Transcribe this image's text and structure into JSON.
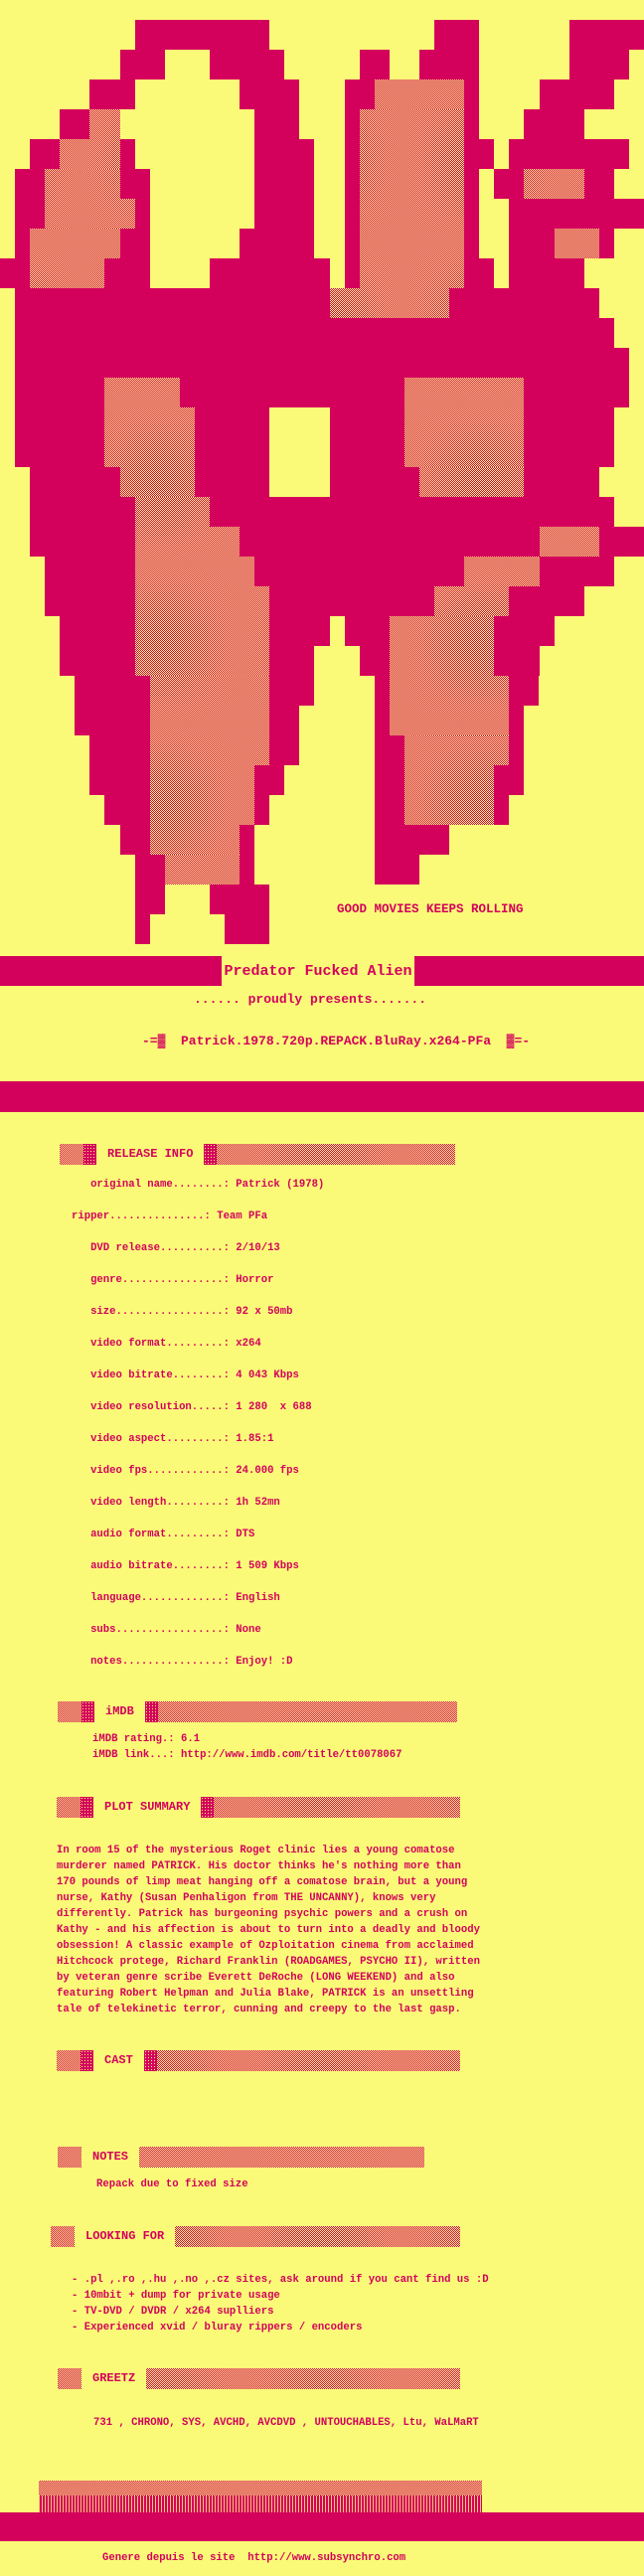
{
  "page": {
    "background_color": "#fafa78",
    "accent_color": "#d4015c"
  },
  "art": {
    "tagline": "GOOD MOVIES KEEPS ROLLING",
    "legend": {
      "#": "solid-crimson",
      "%": "dither",
      ".": "empty"
    },
    "grid": [
      ".........#########...........###......#####",
      "........###...#####.....##..####......####.",
      "......###.......####...##%%%%%%#....#####..",
      "....##%%.........###...#%%%%%%%#...####....",
      "..##%%%%#........####..#%%%%%%%##.########.",
      ".##%%%%%##.......####..#%%%%%%%#.##%%%%##..",
      ".##%%%%%%#.......####..#%%%%%%%#..#########",
      ".#%%%%%%##......#####..#%%%%%%%#..###%%%#..",
      "##%%%%%###....########.#%%%%%%%##.#####....",
      ".#####################%%%%%%%%##########...",
      ".########################################..",
      ".#########################################.",
      ".######%%%%%###############%%%%%%%%#######.",
      ".######%%%%%%#####....#####%%%%%%%%######..",
      ".######%%%%%%#####....#####%%%%%%%%######..",
      "..######%%%%%#####....######%%%%%%%#####...",
      "..#######%%%%%###########################..",
      "..#######%%%%%%%####################%%%%###",
      "...######%%%%%%%%##############%%%%%#####..",
      "...######%%%%%%%%%###########%%%%%#####....",
      "....#####%%%%%%%%%####.###%%%%%%%####......",
      "....#####%%%%%%%%%###...##%%%%%%%###.......",
      ".....#####%%%%%%%%###....#%%%%%%%%##.......",
      ".....#####%%%%%%%%##.....#%%%%%%%%#........",
      "......####%%%%%%%%##.....##%%%%%%%#........",
      "......####%%%%%%%##......##%%%%%%##........",
      ".......###%%%%%%%#.......##%%%%%%#.........",
      "........##%%%%%%#........#####.............",
      ".........##%%%%%#........###...............",
      ".........##...####.........................",
      ".........#.....###........................."
    ]
  },
  "banner": {
    "group_name": "Predator Fucked Alien",
    "presents_line": "...... proudly presents.......",
    "release_name": "-=▓  Patrick.1978.720p.REPACK.BluRay.x264-PFa  ▓=-"
  },
  "release_info": {
    "title": "RELEASE INFO",
    "lines": [
      "   original name........: Patrick (1978)",
      "ripper...............: Team PFa",
      "   DVD release..........: 2/10/13",
      "   genre................: Horror",
      "   size.................: 92 x 50mb",
      "   video format.........: x264",
      "   video bitrate........: 4 043 Kbps",
      "   video resolution.....: 1 280  x 688",
      "   video aspect.........: 1.85:1",
      "   video fps............: 24.000 fps",
      "   video length.........: 1h 52mn",
      "   audio format.........: DTS",
      "   audio bitrate........: 1 509 Kbps",
      "   language.............: English",
      "   subs.................: None",
      "   notes................: Enjoy! :D"
    ]
  },
  "imdb": {
    "title": "iMDB",
    "lines": [
      "iMDB rating.: 6.1",
      "iMDB link...: http://www.imdb.com/title/tt0078067"
    ]
  },
  "plot_summary": {
    "title": "PLOT SUMMARY",
    "lines": [
      "In room 15 of the mysterious Roget clinic lies a young comatose",
      "murderer named PATRICK. His doctor thinks he's nothing more than",
      "170 pounds of limp meat hanging off a comatose brain, but a young",
      "nurse, Kathy (Susan Penhaligon from THE UNCANNY), knows very",
      "differently. Patrick has burgeoning psychic powers and a crush on",
      "Kathy - and his affection is about to turn into a deadly and bloody",
      "obsession! A classic example of Ozploitation cinema from acclaimed",
      "Hitchcock protege, Richard Franklin (ROADGAMES, PSYCHO II), written",
      "by veteran genre scribe Everett DeRoche (LONG WEEKEND) and also",
      "featuring Robert Helpman and Julia Blake, PATRICK is an unsettling",
      "tale of telekinetic terror, cunning and creepy to the last gasp."
    ]
  },
  "cast": {
    "title": "CAST"
  },
  "notes": {
    "title": "NOTES",
    "text": "Repack due to fixed size"
  },
  "looking_for": {
    "title": "LOOKING FOR",
    "lines": [
      "- .pl ,.ro ,.hu ,.no ,.cz sites, ask around if you cant find us :D",
      "- 10mbit + dump for private usage",
      "- TV-DVD / DVDR / x264 suplliers",
      "- Experienced xvid / bluray rippers / encoders"
    ]
  },
  "greetz": {
    "title": "GREETZ",
    "line": "731 , CHRONO, SYS, AVCHD, AVCDVD , UNTOUCHABLES, Ltu, WaLMaRT"
  },
  "footer": {
    "generator_line": "Genere depuis le site  http://www.subsynchro.com"
  }
}
